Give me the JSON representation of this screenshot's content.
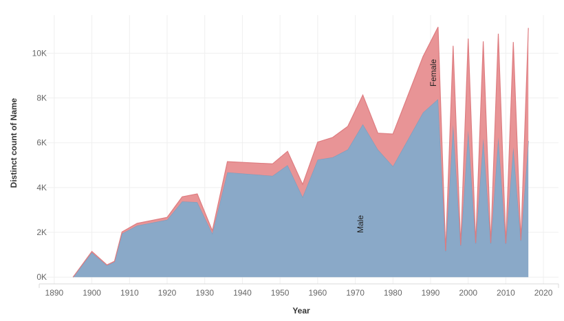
{
  "chart_data": {
    "type": "area",
    "stacked": true,
    "xlabel": "Year",
    "ylabel": "Distinct count of Name",
    "xlim": [
      1886,
      2024
    ],
    "ylim": [
      -300,
      11700
    ],
    "x_ticks": [
      1890,
      1900,
      1910,
      1920,
      1930,
      1940,
      1950,
      1960,
      1970,
      1980,
      1990,
      2000,
      2010,
      2020
    ],
    "y_ticks": [
      0,
      2000,
      4000,
      6000,
      8000,
      10000
    ],
    "y_tick_labels": [
      "0K",
      "2K",
      "4K",
      "6K",
      "8K",
      "10K"
    ],
    "grid": true,
    "legend": "none",
    "x": [
      1895,
      1900,
      1904,
      1906,
      1908,
      1912,
      1920,
      1924,
      1928,
      1932,
      1936,
      1948,
      1952,
      1956,
      1960,
      1964,
      1968,
      1972,
      1976,
      1980,
      1988,
      1992,
      1994,
      1996,
      1998,
      2000,
      2002,
      2004,
      2006,
      2008,
      2010,
      2012,
      2014,
      2016
    ],
    "series": [
      {
        "name": "Male",
        "color": "#8aa9c8",
        "values": [
          0,
          1100,
          520,
          680,
          1950,
          2300,
          2560,
          3380,
          3350,
          1950,
          4680,
          4520,
          5000,
          3580,
          5250,
          5350,
          5700,
          6830,
          5700,
          4950,
          7350,
          7950,
          1150,
          6800,
          1400,
          6550,
          1500,
          6200,
          1500,
          6250,
          1480,
          5800,
          1620,
          6080
        ]
      },
      {
        "name": "Female",
        "color": "#e89496",
        "values": [
          0,
          50,
          30,
          30,
          70,
          100,
          110,
          210,
          370,
          130,
          480,
          540,
          620,
          560,
          780,
          890,
          1030,
          1300,
          730,
          1440,
          2500,
          3220,
          30,
          3530,
          30,
          4100,
          30,
          4330,
          30,
          4620,
          30,
          4700,
          30,
          5050
        ]
      }
    ]
  },
  "labels": {
    "male": "Male",
    "female": "Female"
  }
}
